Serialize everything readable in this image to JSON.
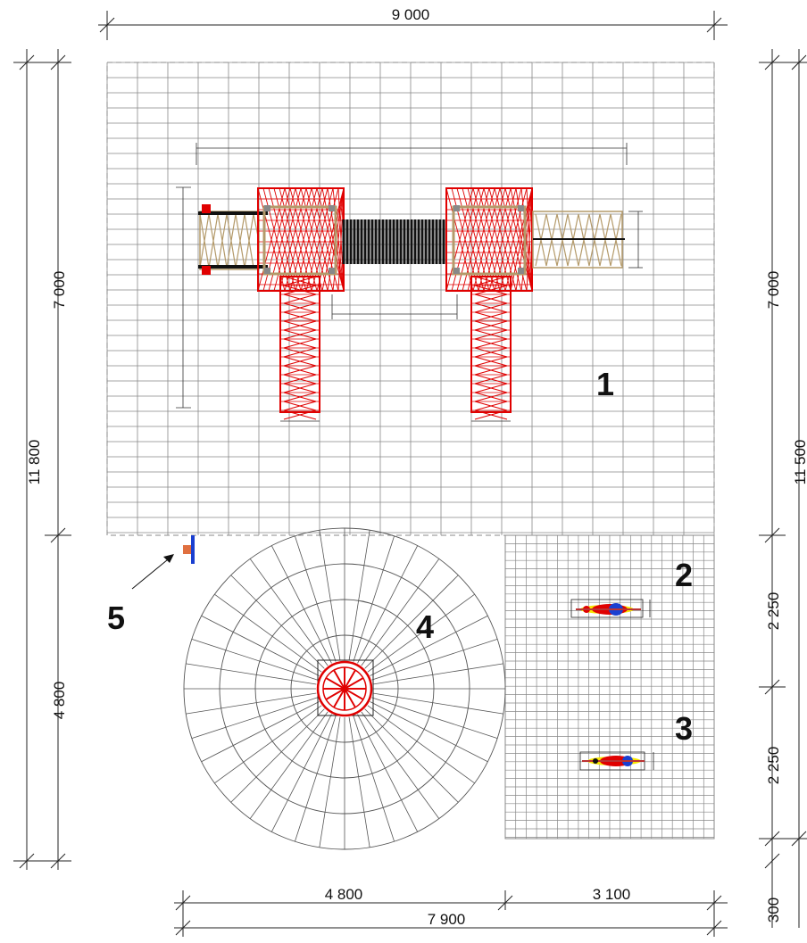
{
  "dimensions": {
    "top_total": "9 000",
    "left_total": "11 800",
    "left_upper": "7 000",
    "left_lower": "4 800",
    "right_upper": "7 000",
    "right_total": "11 500",
    "right_mid_a": "2 250",
    "right_mid_b": "2 250",
    "right_bottom": "300",
    "bottom_left": "4 800",
    "bottom_right": "3 100",
    "bottom_total": "7 900"
  },
  "zones": {
    "zone_1": "1",
    "zone_2": "2",
    "zone_3": "3",
    "zone_4": "4",
    "zone_5": "5"
  },
  "colors": {
    "structure": "#e00000",
    "timber": "#b49a6a",
    "grid": "#888888",
    "tunnel": "#111111",
    "sign": "#1a3fd0"
  }
}
